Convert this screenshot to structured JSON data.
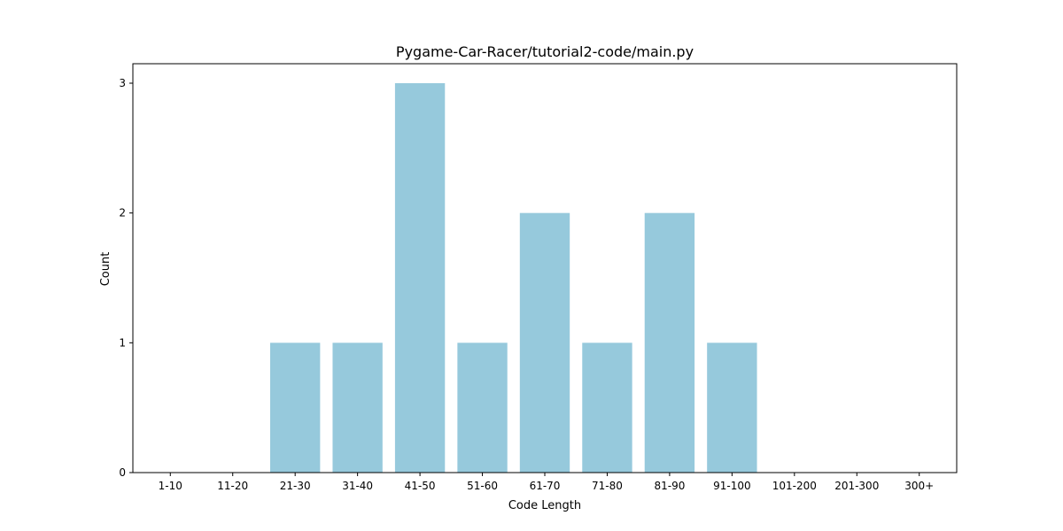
{
  "chart_data": {
    "type": "bar",
    "title": "Pygame-Car-Racer/tutorial2-code/main.py",
    "xlabel": "Code Length",
    "ylabel": "Count",
    "categories": [
      "1-10",
      "11-20",
      "21-30",
      "31-40",
      "41-50",
      "51-60",
      "61-70",
      "71-80",
      "81-90",
      "91-100",
      "101-200",
      "201-300",
      "300+"
    ],
    "values": [
      0,
      0,
      1,
      1,
      3,
      1,
      2,
      1,
      2,
      1,
      0,
      0,
      0
    ],
    "ylim": [
      0,
      3.15
    ],
    "yticks": [
      0,
      1,
      2,
      3
    ],
    "grid": false,
    "bar_color": "#96c9dc"
  }
}
